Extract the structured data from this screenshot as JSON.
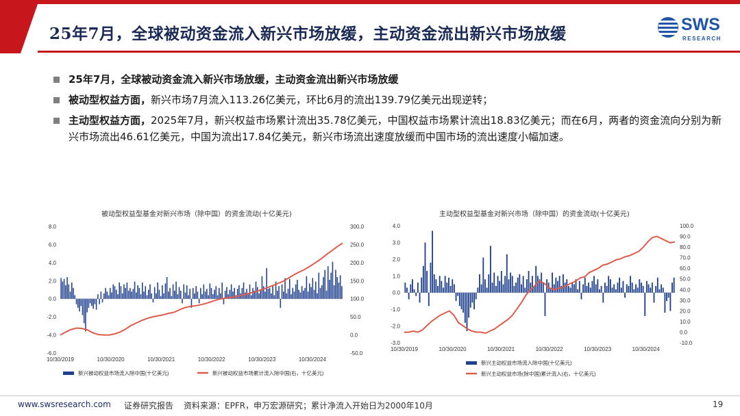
{
  "header": {
    "title": "25年7月，全球被动资金流入新兴市场放缓，主动资金流出新兴市场放缓",
    "logo_text": "SWS",
    "logo_sub": "RESEARCH"
  },
  "bullets": [
    {
      "bold": "25年7月，全球被动资金流入新兴市场放缓，主动资金流出新兴市场放缓",
      "text": ""
    },
    {
      "bold": "被动型权益方面，",
      "text": "新兴市场7月流入113.26亿美元，环比6月的流出139.79亿美元出现逆转；"
    },
    {
      "bold": "主动型权益方面，",
      "text": "2025年7月，新兴权益市场累计流出35.78亿美元，中国权益市场累计流出18.83亿美元；而在6月，两者的资金流向分别为新兴市场流出46.61亿美元，中国为流出17.84亿美元，新兴市场流出速度放缓而中国市场的流出速度小幅加速。"
    }
  ],
  "chart_data": [
    {
      "type": "bar",
      "title": "被动型权益型基金对新兴市场（除中国）的资金流动(十亿美元)",
      "x_ticks": [
        "10/30/2019",
        "10/30/2020",
        "10/30/2021",
        "10/30/2022",
        "10/30/2023",
        "10/30/2024"
      ],
      "left_axis": {
        "ylim": [
          -6,
          8
        ],
        "ticks": [
          "8.0",
          "6.0",
          "4.0",
          "2.0",
          "0.0",
          "-2.0",
          "-4.0",
          "-6.0"
        ]
      },
      "right_axis": {
        "ylim": [
          -50,
          300
        ],
        "ticks": [
          "300.0",
          "250.0",
          "200.0",
          "150.0",
          "100.0",
          "50.0",
          "0.0",
          "-50.0"
        ]
      },
      "series": [
        {
          "name": "新兴被动权益市场流入除中国(十亿美元)",
          "type": "bar",
          "axis": "left",
          "color": "#1f3f8f",
          "values": [
            2.3,
            1.9,
            2.2,
            1.5,
            2.4,
            1.6,
            0.8,
            1.8,
            1.2,
            0.4,
            -0.6,
            -1.0,
            -1.4,
            -0.8,
            -1.8,
            -2.7,
            -3.6,
            -1.5,
            -1.0,
            -0.5,
            -0.8,
            -1.1,
            -0.6,
            -1.2,
            0.5,
            -0.6,
            0.8,
            -0.4,
            0.6,
            1.2,
            0.8,
            0.4,
            1.2,
            0.7,
            1.6,
            1.4,
            1.0,
            0.5,
            1.8,
            1.4,
            0.6,
            1.6,
            1.2,
            1.8,
            0.9,
            1.2,
            0.8,
            1.1,
            1.9,
            0.7,
            1.5,
            1.2,
            0.5,
            1.8,
            0.8,
            1.4,
            0.4,
            1.0,
            1.6,
            0.6,
            -0.4,
            1.3,
            0.6,
            1.8,
            1.0,
            0.3,
            1.5,
            0.6,
            1.7,
            2.4,
            0.8,
            1.2,
            0.3,
            1.6,
            0.9,
            1.9,
            0.5,
            1.3,
            0.9,
            -0.5,
            1.6,
            0.7,
            1.5,
            0.4,
            1.1,
            -1.0,
            1.2,
            0.6,
            1.4,
            0.8,
            -0.5,
            1.2,
            0.5,
            1.6,
            0.8,
            1.1,
            0.4,
            1.7,
            1.2,
            0.5,
            1.0,
            1.4,
            0.4,
            1.2,
            0.6,
            1.8,
            -0.6,
            0.9,
            1.3,
            0.5,
            1.0,
            1.6,
            0.8,
            1.2,
            0.4,
            1.1,
            1.5,
            0.6,
            1.2,
            1.8,
            0.7,
            1.1,
            0.5,
            1.6,
            0.4,
            1.2,
            0.9,
            1.9,
            1.3,
            0.6,
            1.0,
            2.5,
            1.4,
            0.8,
            3.4,
            1.1,
            1.2,
            0.6,
            1.5,
            0.4,
            1.9,
            0.9,
            1.4,
            -1.0,
            1.6,
            0.8,
            2.3,
            0.6,
            1.1,
            2.2,
            0.5,
            1.2,
            0.8,
            1.6,
            2.1,
            1.0,
            0.7,
            1.4,
            0.9,
            1.2,
            2.5,
            0.8,
            1.7,
            1.3,
            2.3,
            1.0,
            1.9,
            0.6,
            2.9,
            1.2,
            1.5,
            2.4,
            3.2,
            0.9,
            3.6,
            2.1,
            2.9,
            4.1,
            1.5,
            3.2,
            2.4,
            1.8,
            2.6,
            1.4
          ]
        },
        {
          "name": "新兴被动权益市场累计流入除中国(右，十亿美元)",
          "type": "line",
          "axis": "right",
          "color": "#e05a4b",
          "values": [
            0,
            8,
            15,
            19,
            18,
            14,
            6,
            1,
            0,
            0,
            3,
            8,
            16,
            26,
            33,
            40,
            46,
            50,
            53,
            56,
            60,
            63,
            70,
            76,
            79,
            81,
            84,
            88,
            93,
            98,
            101,
            103,
            105,
            108,
            112,
            116,
            120,
            125,
            130,
            136,
            142,
            148,
            157,
            166,
            174,
            181,
            190,
            200,
            210,
            222,
            233,
            244,
            254
          ]
        }
      ]
    },
    {
      "type": "bar",
      "title": "主动型权益型基金对新兴市场（除中国）的资金流动(十亿美元)",
      "x_ticks": [
        "10/30/2019",
        "10/30/2020",
        "10/30/2021",
        "10/30/2022",
        "10/30/2023",
        "10/30/2024"
      ],
      "left_axis": {
        "ylim": [
          -3,
          4
        ],
        "ticks": [
          "4.0",
          "3.0",
          "2.0",
          "1.0",
          "0.0",
          "-1.0",
          "-2.0",
          "-3.0"
        ]
      },
      "right_axis": {
        "ylim": [
          -10,
          100
        ],
        "ticks": [
          "100.0",
          "90.0",
          "80.0",
          "70.0",
          "60.0",
          "50.0",
          "40.0",
          "30.0",
          "20.0",
          "10.0",
          "0.0",
          "-10.0"
        ]
      },
      "series": [
        {
          "name": "新兴主动权益市场流入除中国(十亿美元)",
          "type": "bar",
          "axis": "left",
          "color": "#1f3f8f",
          "values": [
            0.6,
            0.3,
            -0.4,
            0.5,
            0.8,
            0.2,
            -0.2,
            0.6,
            -0.6,
            0.9,
            1.6,
            3.0,
            1.3,
            -0.8,
            1.8,
            3.7,
            1.1,
            0.8,
            0.4,
            1.0,
            0.7,
            0.3,
            1.0,
            0.6,
            0.9,
            0.4,
            0.8,
            0.5,
            -0.5,
            -0.2,
            -0.8,
            -1.0,
            -1.2,
            -1.8,
            -2.3,
            -1.5,
            -0.9,
            -0.6,
            -1.0,
            -0.4,
            0.3,
            1.1,
            0.5,
            2.1,
            0.8,
            0.3,
            1.1,
            2.8,
            0.6,
            1.2,
            0.4,
            1.0,
            0.7,
            1.3,
            0.5,
            1.0,
            2.3,
            0.8,
            1.2,
            1.0,
            0.4,
            0.6,
            0.9,
            1.1,
            0.5,
            1.0,
            0.3,
            0.8,
            1.3,
            0.6,
            1.0,
            0.4,
            1.6,
            1.0,
            0.8,
            1.2,
            0.6,
            -1.4,
            0.8,
            0.6,
            0.3,
            1.2,
            0.5,
            0.9,
            0.7,
            1.0,
            0.4,
            1.1,
            0.6,
            0.8,
            0.4,
            0.3,
            0.6,
            0.5,
            0.8,
            0.2,
            0.7,
            -0.4,
            0.5,
            0.9,
            0.4,
            0.6,
            0.3,
            0.7,
            1.0,
            0.5,
            0.8,
            0.2,
            0.4,
            -0.6,
            0.6,
            0.4,
            1.0,
            0.8,
            0.3,
            0.5,
            0.2,
            0.6,
            0.9,
            0.3,
            0.7,
            -0.3,
            0.5,
            0.4,
            1.0,
            0.6,
            0.2,
            0.5,
            0.3,
            0.8,
            0.6,
            0.4,
            -1.4,
            0.7,
            0.5,
            0.3,
            0.6,
            -0.6,
            0.4,
            0.9,
            0.2,
            0.5,
            0.3,
            -1.2,
            -0.5,
            -0.3,
            -1.1,
            0.6,
            0.9
          ]
        },
        {
          "name": "新兴主动权益市场(除中国)累计流入(右，十亿美元)",
          "type": "line",
          "axis": "right",
          "color": "#e05a4b",
          "values": [
            0,
            0,
            1,
            0,
            2,
            6,
            10,
            13,
            16,
            18,
            20,
            16,
            9,
            6,
            3,
            1,
            0,
            0,
            -1,
            1,
            3,
            6,
            9,
            12,
            16,
            22,
            28,
            35,
            40,
            44,
            48,
            46,
            42,
            40,
            41,
            42,
            44,
            46,
            48,
            51,
            52,
            56,
            58,
            60,
            63,
            64,
            66,
            68,
            69,
            71,
            72,
            74,
            76,
            80,
            85,
            89,
            90,
            88,
            86,
            84,
            85
          ]
        }
      ]
    }
  ],
  "footer": {
    "website": "www.swsresearch.com",
    "report_type": "证券研究报告",
    "source": "资料来源：EPFR，申万宏源研究；累计净流入开始日为2000年10月",
    "page_number": "19"
  }
}
